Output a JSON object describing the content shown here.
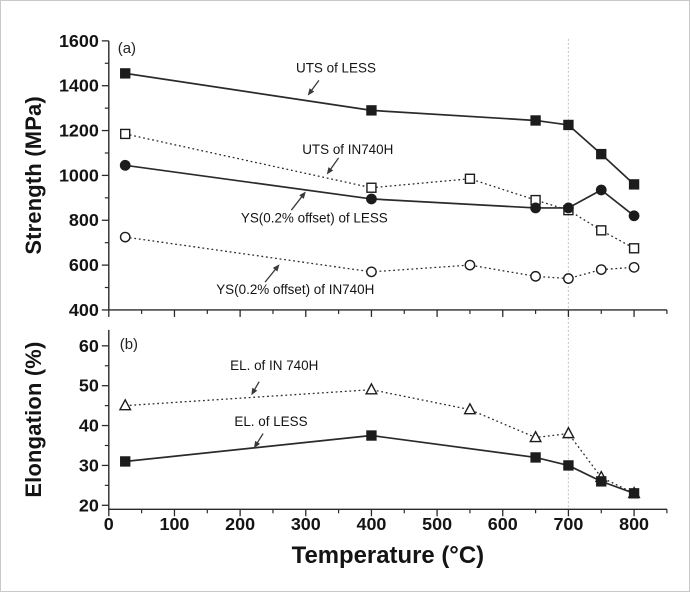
{
  "figure": {
    "x_axis_title": "Temperature (°C)",
    "background": "#ffffff",
    "line_color": "#2a2a2a",
    "text_color": "#141414",
    "annotation_color": "#3a3a3a",
    "reference_line": {
      "x": 700,
      "color": "#cbcbcb"
    }
  },
  "chart_data": [
    {
      "type": "line",
      "panel": "a",
      "tag": "(a)",
      "ylabel": "Strength (MPa)",
      "xlabel": "",
      "xlim": [
        0,
        850
      ],
      "ylim": [
        400,
        1600
      ],
      "x_major_ticks": [
        0,
        100,
        200,
        300,
        400,
        500,
        600,
        700,
        800
      ],
      "x_minor_ticks": [
        50,
        150,
        250,
        350,
        450,
        550,
        650,
        750,
        850
      ],
      "y_major_ticks": [
        400,
        600,
        800,
        1000,
        1200,
        1400,
        1600
      ],
      "y_minor_ticks": [
        500,
        700,
        900,
        1100,
        1300,
        1500
      ],
      "show_x_tick_labels": false,
      "grid": false,
      "legend": "none",
      "series": [
        {
          "name": "UTS of LESS",
          "marker": "square-filled",
          "line": "solid",
          "x": [
            25,
            400,
            650,
            700,
            750,
            800
          ],
          "y": [
            1455,
            1290,
            1245,
            1225,
            1095,
            960
          ]
        },
        {
          "name": "UTS of IN740H",
          "marker": "square-open",
          "line": "dotted",
          "x": [
            25,
            400,
            550,
            650,
            700,
            750,
            800
          ],
          "y": [
            1185,
            945,
            985,
            890,
            845,
            755,
            675
          ]
        },
        {
          "name": "YS(0.2% offset) of LESS",
          "marker": "circle-filled",
          "line": "solid",
          "x": [
            25,
            400,
            650,
            700,
            750,
            800
          ],
          "y": [
            1045,
            895,
            855,
            855,
            935,
            820
          ]
        },
        {
          "name": "YS(0.2% offset) of IN740H",
          "marker": "circle-open",
          "line": "dotted",
          "x": [
            25,
            400,
            550,
            650,
            700,
            750,
            800
          ],
          "y": [
            725,
            570,
            600,
            550,
            540,
            580,
            590
          ]
        }
      ],
      "annotations": [
        {
          "text": "UTS of LESS",
          "label_at": [
            346,
            1480
          ],
          "arrow_from": [
            320,
            1424
          ],
          "arrow_to": [
            303,
            1356
          ]
        },
        {
          "text": "UTS of IN740H",
          "label_at": [
            364,
            1116
          ],
          "arrow_from": [
            350,
            1078
          ],
          "arrow_to": [
            332,
            1004
          ]
        },
        {
          "text": "YS(0.2% offset) of LESS",
          "label_at": [
            313,
            810
          ],
          "arrow_from": [
            278,
            845
          ],
          "arrow_to": [
            300,
            928
          ]
        },
        {
          "text": "YS(0.2% offset) of IN740H",
          "label_at": [
            284,
            492
          ],
          "arrow_from": [
            238,
            524
          ],
          "arrow_to": [
            260,
            604
          ]
        }
      ]
    },
    {
      "type": "line",
      "panel": "b",
      "tag": "(b)",
      "ylabel": "Elongation (%)",
      "xlabel": "Temperature (°C)",
      "xlim": [
        0,
        850
      ],
      "ylim": [
        19,
        64
      ],
      "x_major_ticks": [
        0,
        100,
        200,
        300,
        400,
        500,
        600,
        700,
        800
      ],
      "x_minor_ticks": [
        50,
        150,
        250,
        350,
        450,
        550,
        650,
        750,
        850
      ],
      "y_major_ticks": [
        20,
        30,
        40,
        50,
        60
      ],
      "y_minor_ticks": [
        25,
        35,
        45,
        55
      ],
      "show_x_tick_labels": true,
      "grid": false,
      "legend": "none",
      "series": [
        {
          "name": "EL. of IN 740H",
          "marker": "triangle-open",
          "line": "dotted",
          "x": [
            25,
            400,
            550,
            650,
            700,
            750,
            800
          ],
          "y": [
            45,
            49,
            44,
            37,
            38,
            27,
            23
          ]
        },
        {
          "name": "EL. of LESS",
          "marker": "square-filled",
          "line": "solid",
          "x": [
            25,
            400,
            650,
            700,
            750,
            800
          ],
          "y": [
            31,
            37.5,
            32,
            30,
            26,
            23
          ]
        }
      ],
      "annotations": [
        {
          "text": "EL. of IN 740H",
          "label_at": [
            252,
            55
          ],
          "arrow_from": [
            229,
            51
          ],
          "arrow_to": [
            217,
            47.6
          ]
        },
        {
          "text": "EL. of LESS",
          "label_at": [
            247,
            41
          ],
          "arrow_from": [
            235,
            38
          ],
          "arrow_to": [
            221,
            34.3
          ]
        }
      ]
    }
  ]
}
